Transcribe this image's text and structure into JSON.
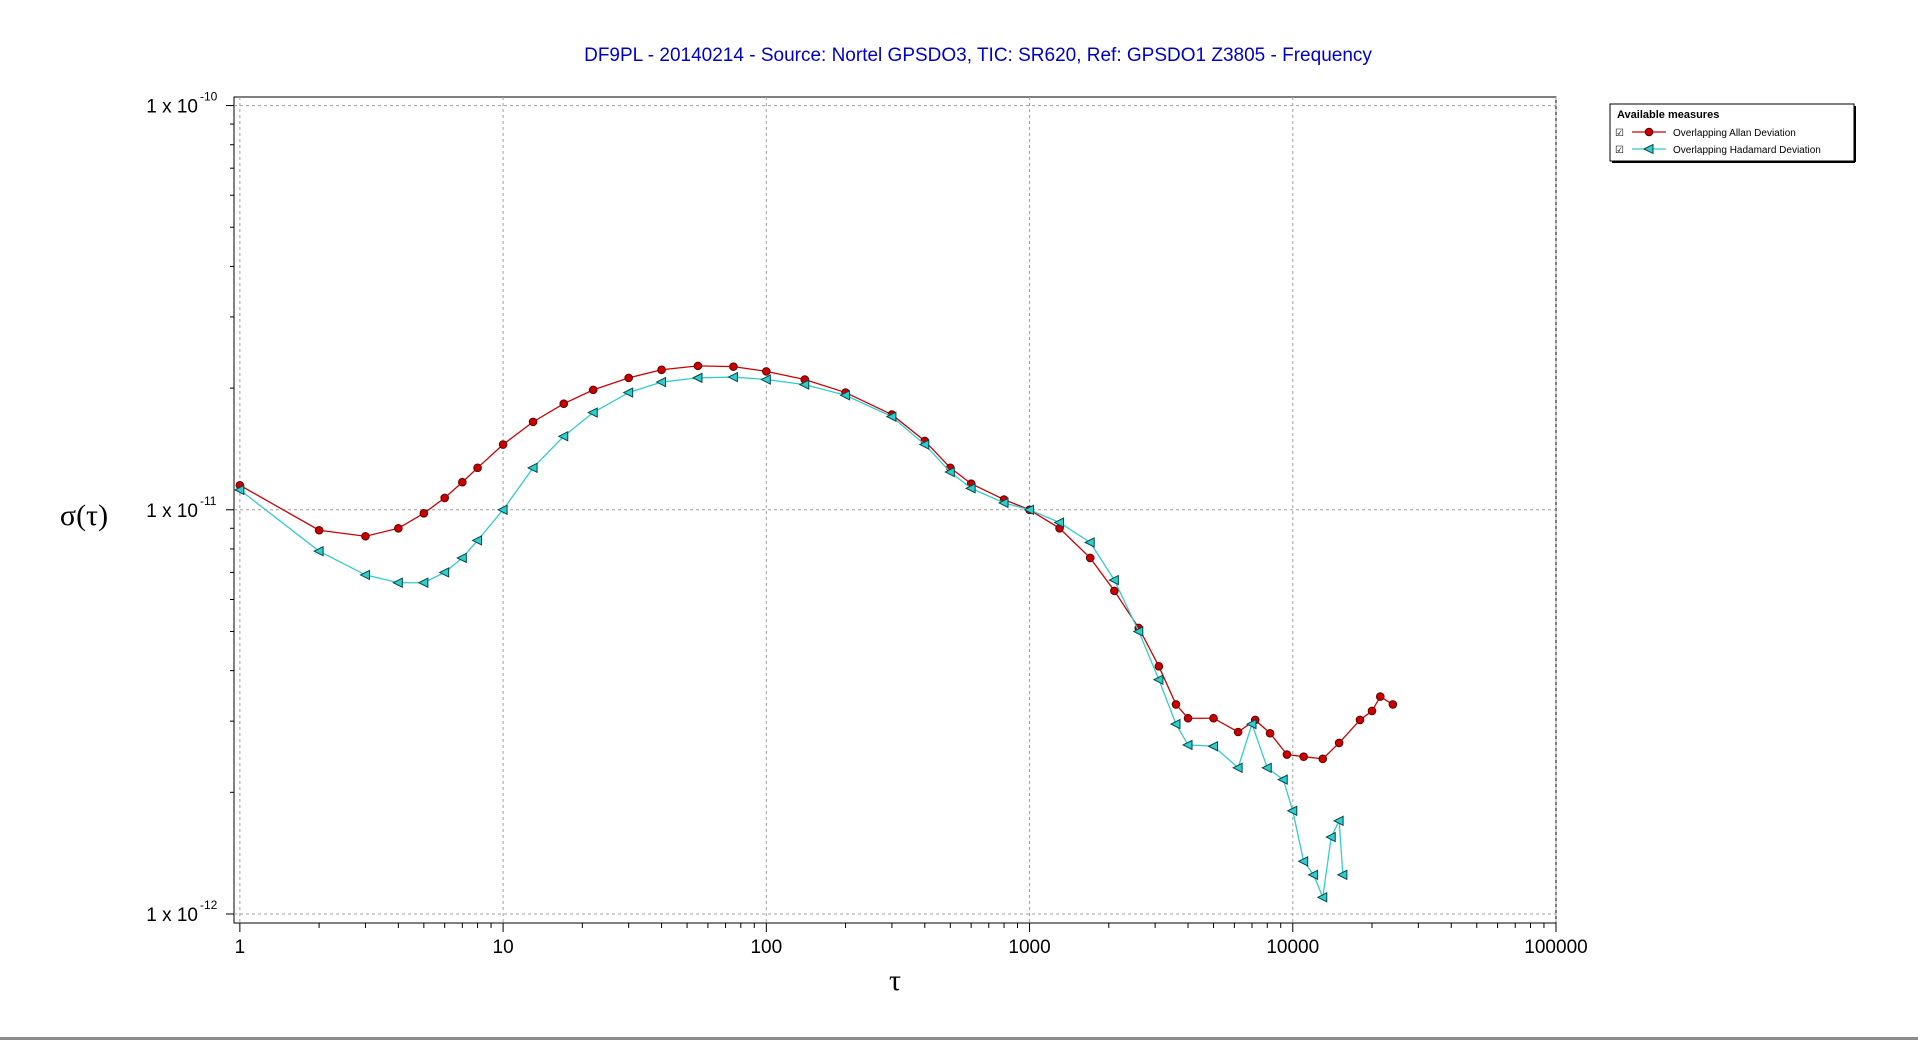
{
  "chart_data": {
    "type": "line",
    "title": "DF9PL - 20140214 - Source: Nortel GPSDO3, TIC: SR620, Ref: GPSDO1 Z3805 - Frequency",
    "xlabel": "τ",
    "ylabel": "σ(τ)",
    "x_scale": "log",
    "y_scale": "log",
    "xlim": [
      0.95,
      100000
    ],
    "ylim": [
      9.5e-13,
      1.05e-10
    ],
    "grid": true,
    "x_ticks": [
      "1",
      "10",
      "100",
      "1000",
      "10000",
      "100000"
    ],
    "y_ticks": [
      {
        "mantissa": "1 x 10",
        "exponent": "-10",
        "value": 1e-10
      },
      {
        "mantissa": "1 x 10",
        "exponent": "-11",
        "value": 1e-11
      },
      {
        "mantissa": "1 x 10",
        "exponent": "-12",
        "value": 1e-12
      }
    ],
    "legend": {
      "title": "Available measures",
      "placement": "top-right outside",
      "checked_mark": "☑"
    },
    "series": [
      {
        "name": "Overlapping Allan Deviation",
        "color": "#cc0000",
        "marker": "circle",
        "points": [
          [
            1,
            1.15e-11
          ],
          [
            2,
            8.9e-12
          ],
          [
            3,
            8.6e-12
          ],
          [
            4,
            9e-12
          ],
          [
            5,
            9.8e-12
          ],
          [
            6,
            1.07e-11
          ],
          [
            7,
            1.17e-11
          ],
          [
            8,
            1.27e-11
          ],
          [
            10,
            1.45e-11
          ],
          [
            13,
            1.65e-11
          ],
          [
            17,
            1.83e-11
          ],
          [
            22,
            1.98e-11
          ],
          [
            30,
            2.12e-11
          ],
          [
            40,
            2.22e-11
          ],
          [
            55,
            2.27e-11
          ],
          [
            75,
            2.26e-11
          ],
          [
            100,
            2.2e-11
          ],
          [
            140,
            2.1e-11
          ],
          [
            200,
            1.95e-11
          ],
          [
            300,
            1.72e-11
          ],
          [
            400,
            1.48e-11
          ],
          [
            500,
            1.27e-11
          ],
          [
            600,
            1.16e-11
          ],
          [
            800,
            1.06e-11
          ],
          [
            1000,
            1e-11
          ],
          [
            1300,
            9e-12
          ],
          [
            1700,
            7.6e-12
          ],
          [
            2100,
            6.3e-12
          ],
          [
            2600,
            5.1e-12
          ],
          [
            3100,
            4.1e-12
          ],
          [
            3600,
            3.3e-12
          ],
          [
            4000,
            3.05e-12
          ],
          [
            5000,
            3.05e-12
          ],
          [
            6200,
            2.82e-12
          ],
          [
            7200,
            3.02e-12
          ],
          [
            8200,
            2.8e-12
          ],
          [
            9500,
            2.48e-12
          ],
          [
            11000,
            2.45e-12
          ],
          [
            13000,
            2.42e-12
          ],
          [
            15000,
            2.65e-12
          ],
          [
            18000,
            3.02e-12
          ],
          [
            20000,
            3.18e-12
          ],
          [
            21500,
            3.45e-12
          ],
          [
            24000,
            3.3e-12
          ]
        ]
      },
      {
        "name": "Overlapping Hadamard Deviation",
        "color": "#33cccc",
        "marker": "triangle-left",
        "points": [
          [
            1,
            1.12e-11
          ],
          [
            2,
            7.9e-12
          ],
          [
            3,
            6.9e-12
          ],
          [
            4,
            6.6e-12
          ],
          [
            5,
            6.6e-12
          ],
          [
            6,
            7e-12
          ],
          [
            7,
            7.6e-12
          ],
          [
            8,
            8.4e-12
          ],
          [
            10,
            1e-11
          ],
          [
            13,
            1.27e-11
          ],
          [
            17,
            1.52e-11
          ],
          [
            22,
            1.74e-11
          ],
          [
            30,
            1.95e-11
          ],
          [
            40,
            2.07e-11
          ],
          [
            55,
            2.12e-11
          ],
          [
            75,
            2.13e-11
          ],
          [
            100,
            2.1e-11
          ],
          [
            140,
            2.04e-11
          ],
          [
            200,
            1.92e-11
          ],
          [
            300,
            1.7e-11
          ],
          [
            400,
            1.45e-11
          ],
          [
            500,
            1.24e-11
          ],
          [
            600,
            1.13e-11
          ],
          [
            800,
            1.04e-11
          ],
          [
            1000,
            1e-11
          ],
          [
            1300,
            9.3e-12
          ],
          [
            1700,
            8.3e-12
          ],
          [
            2100,
            6.7e-12
          ],
          [
            2600,
            5e-12
          ],
          [
            3100,
            3.8e-12
          ],
          [
            3600,
            2.95e-12
          ],
          [
            4000,
            2.62e-12
          ],
          [
            5000,
            2.6e-12
          ],
          [
            6200,
            2.3e-12
          ],
          [
            7000,
            2.95e-12
          ],
          [
            8000,
            2.3e-12
          ],
          [
            9200,
            2.15e-12
          ],
          [
            10000,
            1.8e-12
          ],
          [
            11000,
            1.35e-12
          ],
          [
            12000,
            1.25e-12
          ],
          [
            13000,
            1.1e-12
          ],
          [
            14000,
            1.55e-12
          ],
          [
            15000,
            1.7e-12
          ],
          [
            15500,
            1.25e-12
          ]
        ]
      }
    ]
  }
}
